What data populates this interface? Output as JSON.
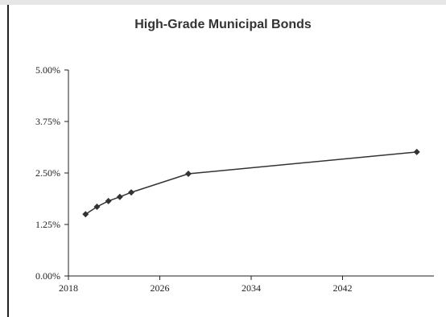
{
  "chart_data": {
    "type": "line",
    "title": "High-Grade Municipal Bonds",
    "xlabel": "",
    "ylabel": "",
    "xlim": [
      2018,
      2050
    ],
    "ylim": [
      0,
      5
    ],
    "xticks": [
      2018,
      2026,
      2034,
      2042
    ],
    "xtick_labels": [
      "2018",
      "2026",
      "2034",
      "2042"
    ],
    "yticks": [
      0,
      1.25,
      2.5,
      3.75,
      5
    ],
    "ytick_labels": [
      "0.00%",
      "1.25%",
      "2.50%",
      "3.75%",
      "5.00%"
    ],
    "grid": false,
    "legend": "none",
    "series": [
      {
        "marker": "diamond",
        "color": "#333333",
        "points": [
          {
            "x": 2019.5,
            "y": 1.5
          },
          {
            "x": 2020.5,
            "y": 1.68
          },
          {
            "x": 2021.5,
            "y": 1.82
          },
          {
            "x": 2022.5,
            "y": 1.92
          },
          {
            "x": 2023.5,
            "y": 2.03
          },
          {
            "x": 2028.5,
            "y": 2.48
          },
          {
            "x": 2048.5,
            "y": 3.01
          }
        ]
      }
    ]
  }
}
